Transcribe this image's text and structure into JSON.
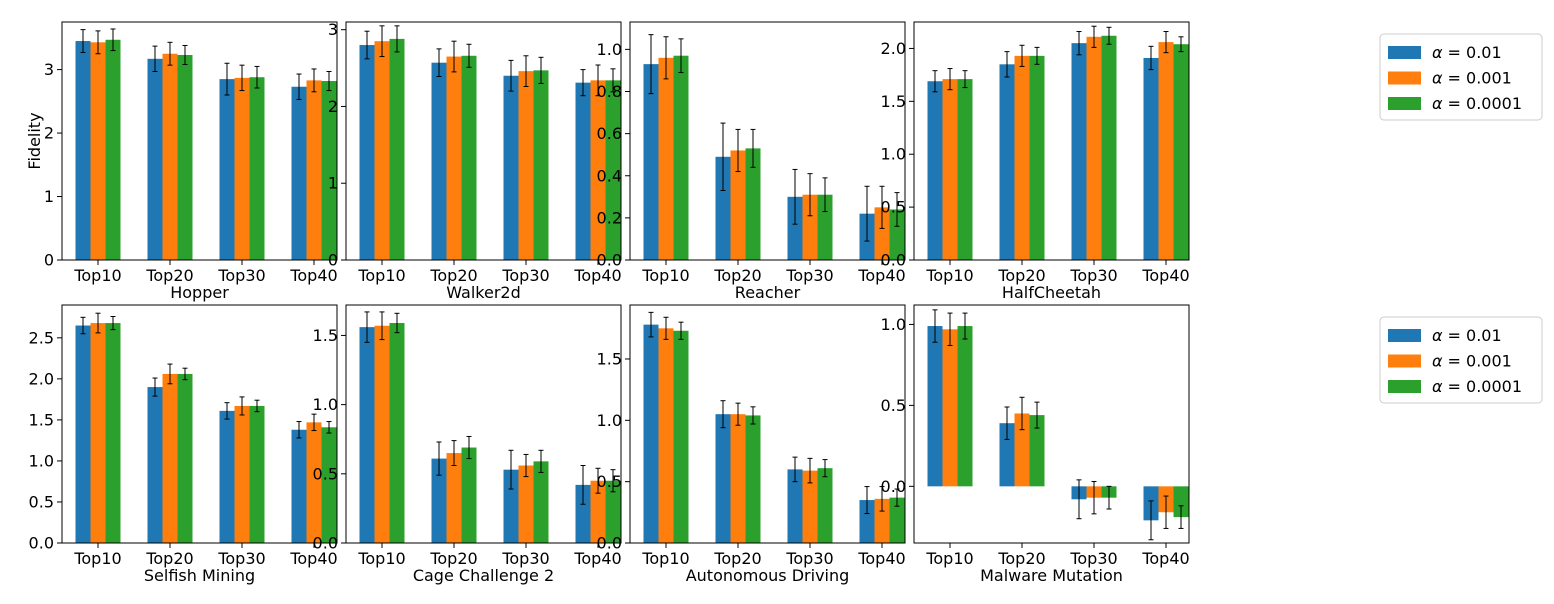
{
  "figure": {
    "ylabel": "Fidelity",
    "legends": [
      [
        {
          "symbol": "α",
          "label": "= 0.01",
          "color": "#1f77b4"
        },
        {
          "symbol": "α",
          "label": "= 0.001",
          "color": "#ff7f0e"
        },
        {
          "symbol": "α",
          "label": "= 0.0001",
          "color": "#2ca02c"
        }
      ],
      [
        {
          "symbol": "α",
          "label": "= 0.01",
          "color": "#1f77b4"
        },
        {
          "symbol": "α",
          "label": "= 0.001",
          "color": "#ff7f0e"
        },
        {
          "symbol": "α",
          "label": "= 0.0001",
          "color": "#2ca02c"
        }
      ]
    ]
  },
  "chart_data": [
    {
      "type": "bar",
      "xlabel": "Hopper",
      "ylabel": "Fidelity",
      "categories": [
        "Top10",
        "Top20",
        "Top30",
        "Top40"
      ],
      "ylim": [
        0,
        3.75
      ],
      "yticks": [
        0,
        1,
        2,
        3
      ],
      "ytick_labels": [
        "0",
        "1",
        "2",
        "3"
      ],
      "series": [
        {
          "name": "α = 0.01",
          "values": [
            3.45,
            3.17,
            2.85,
            2.73
          ],
          "errors": [
            0.18,
            0.2,
            0.25,
            0.2
          ]
        },
        {
          "name": "α = 0.001",
          "values": [
            3.43,
            3.25,
            2.87,
            2.83
          ],
          "errors": [
            0.18,
            0.18,
            0.2,
            0.18
          ]
        },
        {
          "name": "α = 0.0001",
          "values": [
            3.47,
            3.23,
            2.88,
            2.82
          ],
          "errors": [
            0.17,
            0.15,
            0.17,
            0.15
          ]
        }
      ]
    },
    {
      "type": "bar",
      "xlabel": "Walker2d",
      "ylabel": "",
      "categories": [
        "Top10",
        "Top20",
        "Top30",
        "Top40"
      ],
      "ylim": [
        0,
        3.1
      ],
      "yticks": [
        0,
        1,
        2,
        3
      ],
      "ytick_labels": [
        "0",
        "1",
        "2",
        "3"
      ],
      "series": [
        {
          "name": "α = 0.01",
          "values": [
            2.8,
            2.57,
            2.4,
            2.31
          ],
          "errors": [
            0.18,
            0.18,
            0.2,
            0.17
          ]
        },
        {
          "name": "α = 0.001",
          "values": [
            2.85,
            2.65,
            2.46,
            2.34
          ],
          "errors": [
            0.2,
            0.2,
            0.2,
            0.2
          ]
        },
        {
          "name": "α = 0.0001",
          "values": [
            2.88,
            2.66,
            2.47,
            2.34
          ],
          "errors": [
            0.17,
            0.15,
            0.17,
            0.15
          ]
        }
      ]
    },
    {
      "type": "bar",
      "xlabel": "Reacher",
      "ylabel": "",
      "categories": [
        "Top10",
        "Top20",
        "Top30",
        "Top40"
      ],
      "ylim": [
        0,
        1.13
      ],
      "yticks": [
        0,
        0.2,
        0.4,
        0.6,
        0.8,
        1.0
      ],
      "ytick_labels": [
        "0.0",
        "0.2",
        "0.4",
        "0.6",
        "0.8",
        "1.0"
      ],
      "series": [
        {
          "name": "α = 0.01",
          "values": [
            0.93,
            0.49,
            0.3,
            0.22
          ],
          "errors": [
            0.14,
            0.16,
            0.13,
            0.13
          ]
        },
        {
          "name": "α = 0.001",
          "values": [
            0.96,
            0.52,
            0.31,
            0.25
          ],
          "errors": [
            0.1,
            0.1,
            0.1,
            0.1
          ]
        },
        {
          "name": "α = 0.0001",
          "values": [
            0.97,
            0.53,
            0.31,
            0.24
          ],
          "errors": [
            0.08,
            0.09,
            0.08,
            0.08
          ]
        }
      ]
    },
    {
      "type": "bar",
      "xlabel": "HalfCheetah",
      "ylabel": "",
      "categories": [
        "Top10",
        "Top20",
        "Top30",
        "Top40"
      ],
      "ylim": [
        0,
        2.25
      ],
      "yticks": [
        0,
        0.5,
        1.0,
        1.5,
        2.0
      ],
      "ytick_labels": [
        "0.0",
        "0.5",
        "1.0",
        "1.5",
        "2.0"
      ],
      "series": [
        {
          "name": "α = 0.01",
          "values": [
            1.69,
            1.85,
            2.05,
            1.91
          ],
          "errors": [
            0.1,
            0.12,
            0.11,
            0.11
          ]
        },
        {
          "name": "α = 0.001",
          "values": [
            1.71,
            1.93,
            2.11,
            2.06
          ],
          "errors": [
            0.1,
            0.1,
            0.1,
            0.1
          ]
        },
        {
          "name": "α = 0.0001",
          "values": [
            1.71,
            1.93,
            2.12,
            2.04
          ],
          "errors": [
            0.08,
            0.08,
            0.08,
            0.07
          ]
        }
      ]
    },
    {
      "type": "bar",
      "xlabel": "Selfish Mining",
      "ylabel": "",
      "categories": [
        "Top10",
        "Top20",
        "Top30",
        "Top40"
      ],
      "ylim": [
        0,
        2.9
      ],
      "yticks": [
        0,
        0.5,
        1.0,
        1.5,
        2.0,
        2.5
      ],
      "ytick_labels": [
        "0.0",
        "0.5",
        "1.0",
        "1.5",
        "2.0",
        "2.5"
      ],
      "series": [
        {
          "name": "α = 0.01",
          "values": [
            2.65,
            1.9,
            1.61,
            1.38
          ],
          "errors": [
            0.1,
            0.11,
            0.1,
            0.1
          ]
        },
        {
          "name": "α = 0.001",
          "values": [
            2.68,
            2.06,
            1.67,
            1.47
          ],
          "errors": [
            0.12,
            0.12,
            0.11,
            0.1
          ]
        },
        {
          "name": "α = 0.0001",
          "values": [
            2.68,
            2.06,
            1.67,
            1.41
          ],
          "errors": [
            0.08,
            0.07,
            0.07,
            0.07
          ]
        }
      ]
    },
    {
      "type": "bar",
      "xlabel": "Cage Challenge 2",
      "ylabel": "",
      "categories": [
        "Top10",
        "Top20",
        "Top30",
        "Top40"
      ],
      "ylim": [
        0,
        1.72
      ],
      "yticks": [
        0,
        0.5,
        1.0,
        1.5
      ],
      "ytick_labels": [
        "0.0",
        "0.5",
        "1.0",
        "1.5"
      ],
      "series": [
        {
          "name": "α = 0.01",
          "values": [
            1.56,
            0.61,
            0.53,
            0.42
          ],
          "errors": [
            0.11,
            0.12,
            0.14,
            0.14
          ]
        },
        {
          "name": "α = 0.001",
          "values": [
            1.57,
            0.65,
            0.56,
            0.45
          ],
          "errors": [
            0.1,
            0.09,
            0.08,
            0.09
          ]
        },
        {
          "name": "α = 0.0001",
          "values": [
            1.59,
            0.69,
            0.59,
            0.45
          ],
          "errors": [
            0.07,
            0.08,
            0.08,
            0.08
          ]
        }
      ]
    },
    {
      "type": "bar",
      "xlabel": "Autonomous Driving",
      "ylabel": "",
      "categories": [
        "Top10",
        "Top20",
        "Top30",
        "Top40"
      ],
      "ylim": [
        0,
        1.94
      ],
      "yticks": [
        0,
        0.5,
        1.0,
        1.5
      ],
      "ytick_labels": [
        "0.0",
        "0.5",
        "1.0",
        "1.5"
      ],
      "series": [
        {
          "name": "α = 0.01",
          "values": [
            1.78,
            1.05,
            0.6,
            0.35
          ],
          "errors": [
            0.1,
            0.11,
            0.1,
            0.11
          ]
        },
        {
          "name": "α = 0.001",
          "values": [
            1.75,
            1.05,
            0.59,
            0.36
          ],
          "errors": [
            0.09,
            0.09,
            0.1,
            0.1
          ]
        },
        {
          "name": "α = 0.0001",
          "values": [
            1.73,
            1.04,
            0.61,
            0.37
          ],
          "errors": [
            0.07,
            0.07,
            0.07,
            0.07
          ]
        }
      ]
    },
    {
      "type": "bar",
      "xlabel": "Malware Mutation",
      "ylabel": "",
      "categories": [
        "Top10",
        "Top20",
        "Top30",
        "Top40"
      ],
      "ylim": [
        -0.35,
        1.12
      ],
      "yticks": [
        0,
        0.5,
        1.0
      ],
      "ytick_labels": [
        "0.0",
        "0.5",
        "1.0"
      ],
      "series": [
        {
          "name": "α = 0.01",
          "values": [
            0.99,
            0.39,
            -0.08,
            -0.21
          ],
          "errors": [
            0.1,
            0.1,
            0.12,
            0.12
          ]
        },
        {
          "name": "α = 0.001",
          "values": [
            0.97,
            0.45,
            -0.07,
            -0.16
          ],
          "errors": [
            0.1,
            0.1,
            0.1,
            0.1
          ]
        },
        {
          "name": "α = 0.0001",
          "values": [
            0.99,
            0.44,
            -0.07,
            -0.19
          ],
          "errors": [
            0.08,
            0.08,
            0.07,
            0.07
          ]
        }
      ]
    }
  ]
}
